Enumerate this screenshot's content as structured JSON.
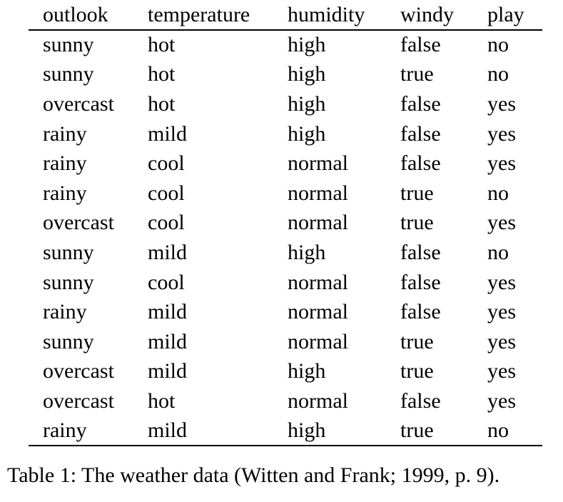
{
  "table": {
    "headers": [
      "outlook",
      "temperature",
      "humidity",
      "windy",
      "play"
    ],
    "rows": [
      [
        "sunny",
        "hot",
        "high",
        "false",
        "no"
      ],
      [
        "sunny",
        "hot",
        "high",
        "true",
        "no"
      ],
      [
        "overcast",
        "hot",
        "high",
        "false",
        "yes"
      ],
      [
        "rainy",
        "mild",
        "high",
        "false",
        "yes"
      ],
      [
        "rainy",
        "cool",
        "normal",
        "false",
        "yes"
      ],
      [
        "rainy",
        "cool",
        "normal",
        "true",
        "no"
      ],
      [
        "overcast",
        "cool",
        "normal",
        "true",
        "yes"
      ],
      [
        "sunny",
        "mild",
        "high",
        "false",
        "no"
      ],
      [
        "sunny",
        "cool",
        "normal",
        "false",
        "yes"
      ],
      [
        "rainy",
        "mild",
        "normal",
        "false",
        "yes"
      ],
      [
        "sunny",
        "mild",
        "normal",
        "true",
        "yes"
      ],
      [
        "overcast",
        "mild",
        "high",
        "true",
        "yes"
      ],
      [
        "overcast",
        "hot",
        "normal",
        "false",
        "yes"
      ],
      [
        "rainy",
        "mild",
        "high",
        "true",
        "no"
      ]
    ]
  },
  "caption": "Table 1: The weather data (Witten and Frank; 1999, p. 9)."
}
